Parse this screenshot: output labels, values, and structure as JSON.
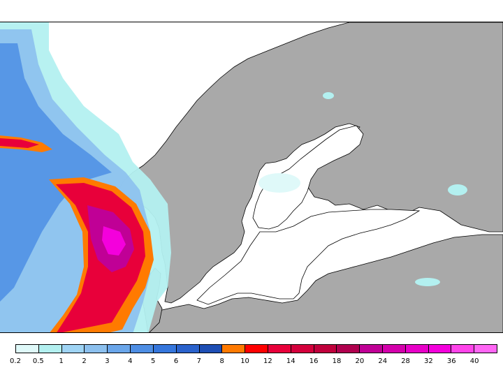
{
  "map": {
    "land_color": "#a9a9a9",
    "sea_color": "#ffffff",
    "border_color": "#000000"
  },
  "legend": {
    "colors": [
      "#dff9f9",
      "#b3f0f0",
      "#9fd4f4",
      "#8cc0ee",
      "#6aa6ea",
      "#4e8ee4",
      "#3576dc",
      "#2a62cc",
      "#1e4eb4",
      "#ff7a00",
      "#ff0000",
      "#e8003a",
      "#d4003c",
      "#c0003c",
      "#b0004e",
      "#c00096",
      "#d400ac",
      "#e800c8",
      "#f400dc",
      "#ff44ea",
      "#ff66f4"
    ],
    "labels": [
      "0.2",
      "0.5",
      "1",
      "2",
      "3",
      "4",
      "5",
      "6",
      "7",
      "8",
      "10",
      "12",
      "14",
      "16",
      "18",
      "20",
      "24",
      "28",
      "32",
      "36",
      "40"
    ]
  }
}
